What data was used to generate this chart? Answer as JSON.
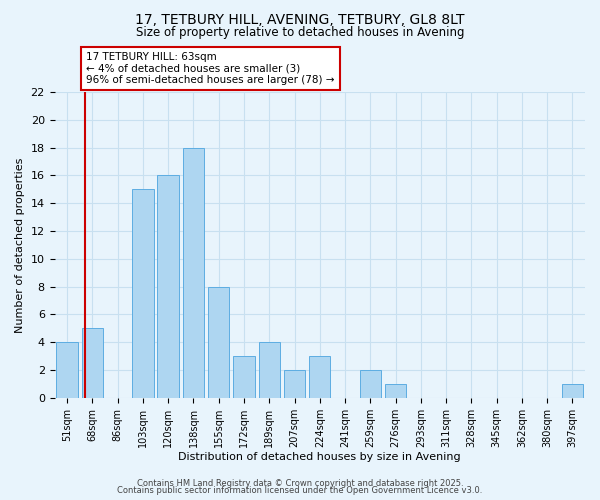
{
  "title": "17, TETBURY HILL, AVENING, TETBURY, GL8 8LT",
  "subtitle": "Size of property relative to detached houses in Avening",
  "xlabel": "Distribution of detached houses by size in Avening",
  "ylabel": "Number of detached properties",
  "bins": [
    "51sqm",
    "68sqm",
    "86sqm",
    "103sqm",
    "120sqm",
    "138sqm",
    "155sqm",
    "172sqm",
    "189sqm",
    "207sqm",
    "224sqm",
    "241sqm",
    "259sqm",
    "276sqm",
    "293sqm",
    "311sqm",
    "328sqm",
    "345sqm",
    "362sqm",
    "380sqm",
    "397sqm"
  ],
  "counts": [
    4,
    5,
    0,
    15,
    16,
    18,
    8,
    3,
    4,
    2,
    3,
    0,
    2,
    1,
    0,
    0,
    0,
    0,
    0,
    0,
    1
  ],
  "bar_color": "#aed6f1",
  "bar_edge_color": "#5dade2",
  "grid_color": "#c8e0f0",
  "background_color": "#e8f4fc",
  "annotation_text": "17 TETBURY HILL: 63sqm\n← 4% of detached houses are smaller (3)\n96% of semi-detached houses are larger (78) →",
  "annotation_box_color": "#ffffff",
  "annotation_box_edge": "#cc0000",
  "red_line_color": "#cc0000",
  "footer1": "Contains HM Land Registry data © Crown copyright and database right 2025.",
  "footer2": "Contains public sector information licensed under the Open Government Licence v3.0.",
  "ylim": [
    0,
    22
  ],
  "yticks": [
    0,
    2,
    4,
    6,
    8,
    10,
    12,
    14,
    16,
    18,
    20,
    22
  ]
}
